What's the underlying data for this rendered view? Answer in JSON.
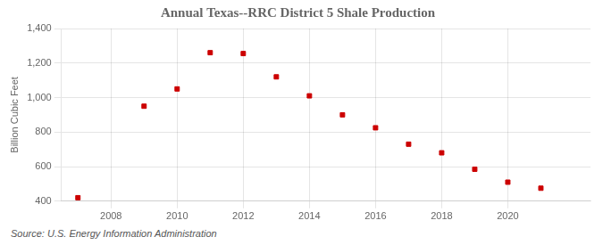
{
  "chart_data": {
    "type": "scatter",
    "title": "Annual Texas--RRC District 5 Shale Production",
    "ylabel": "Billion Cubic Feet",
    "annotations": [
      "Source: U.S. Energy Information Administration"
    ],
    "x": [
      2007,
      2009,
      2010,
      2011,
      2012,
      2013,
      2014,
      2015,
      2016,
      2017,
      2018,
      2019,
      2020,
      2021
    ],
    "values": [
      420,
      950,
      1050,
      1260,
      1255,
      1120,
      1010,
      900,
      825,
      730,
      680,
      585,
      510,
      475
    ],
    "color": "#cc0000",
    "marker": "square",
    "xlim": [
      2006.5,
      2022.5
    ],
    "xticks": [
      2008,
      2010,
      2012,
      2014,
      2016,
      2018,
      2020
    ],
    "ylim": [
      400,
      1400
    ],
    "yticks": [
      400,
      600,
      800,
      {
        "value": 1000,
        "label": "1,000"
      },
      {
        "value": 1200,
        "label": "1,200"
      },
      {
        "value": 1400,
        "label": "1,400"
      }
    ],
    "grid": true
  }
}
